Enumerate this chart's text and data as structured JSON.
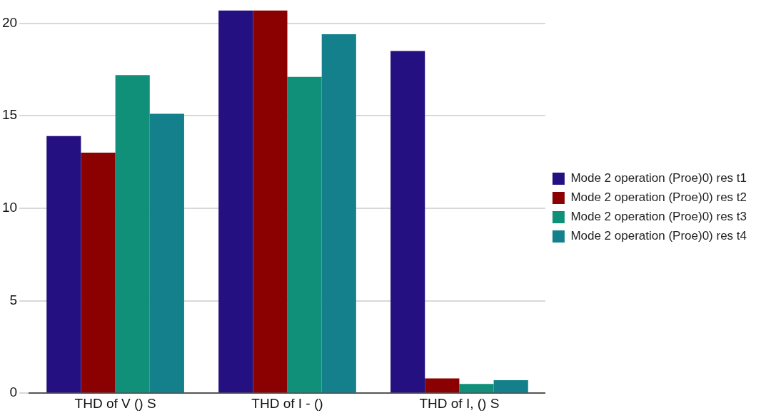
{
  "chart_data": {
    "type": "bar",
    "categories": [
      "THD of V () S",
      "THD of I - ()",
      "THD of I, () S"
    ],
    "series": [
      {
        "name": "Mode 2 operation (Proe)0) res t1",
        "color": "#241080",
        "values": [
          13.9,
          20.7,
          18.5
        ]
      },
      {
        "name": "Mode 2 operation (Proe)0) res t2",
        "color": "#8b0000",
        "values": [
          13.0,
          20.7,
          0.8
        ]
      },
      {
        "name": "Mode 2 operation (Proe)0) res t3",
        "color": "#119079",
        "values": [
          17.2,
          17.1,
          0.5
        ]
      },
      {
        "name": "Mode 2 operation (Proe)0) res t4",
        "color": "#14808c",
        "values": [
          15.1,
          19.4,
          0.7
        ]
      }
    ],
    "ylim": [
      0,
      20.7
    ],
    "yticks": [
      0,
      5,
      10,
      15,
      20
    ],
    "grid": "y",
    "legend": "right"
  }
}
